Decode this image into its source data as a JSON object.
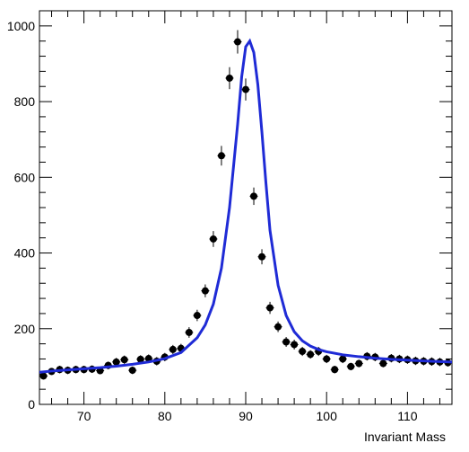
{
  "chart_data": {
    "type": "scatter",
    "title": "",
    "xlabel": "Invariant Mass",
    "ylabel": "",
    "xlim": [
      64.5,
      115.5
    ],
    "ylim": [
      0,
      1040
    ],
    "x_ticks": [
      70,
      80,
      90,
      100,
      110
    ],
    "y_ticks": [
      0,
      200,
      400,
      600,
      800,
      1000
    ],
    "grid": false,
    "legend": "none",
    "bin_half_width": 0.5,
    "colors": {
      "points": "#000000",
      "fit": "#1f2bd6",
      "axis": "#000000"
    },
    "series": [
      {
        "type": "scatter",
        "x": [
          65,
          66,
          67,
          68,
          69,
          70,
          71,
          72,
          73,
          74,
          75,
          76,
          77,
          78,
          79,
          80,
          81,
          82,
          83,
          84,
          85,
          86,
          87,
          88,
          89,
          90,
          91,
          92,
          93,
          94,
          95,
          96,
          97,
          98,
          99,
          100,
          101,
          102,
          103,
          104,
          105,
          106,
          107,
          108,
          109,
          110,
          111,
          112,
          113,
          114,
          115
        ],
        "y": [
          75,
          87,
          92,
          90,
          92,
          92,
          93,
          89,
          103,
          112,
          118,
          90,
          119,
          121,
          114,
          125,
          145,
          148,
          190,
          235,
          300,
          437,
          657,
          862,
          958,
          832,
          550,
          390,
          255,
          205,
          165,
          158,
          140,
          132,
          140,
          120,
          92,
          120,
          100,
          108,
          127,
          125,
          108,
          122,
          120,
          118,
          115,
          114,
          113,
          112,
          110
        ],
        "error": [
          9,
          9,
          10,
          10,
          10,
          10,
          10,
          9,
          10,
          11,
          11,
          10,
          11,
          11,
          11,
          11,
          12,
          12,
          14,
          15,
          17,
          21,
          26,
          29,
          31,
          29,
          23,
          20,
          16,
          14,
          13,
          13,
          12,
          11,
          12,
          11,
          10,
          11,
          10,
          10,
          11,
          11,
          10,
          11,
          11,
          11,
          11,
          11,
          11,
          11,
          10
        ]
      },
      {
        "type": "line",
        "x": [
          64.5,
          66,
          68,
          70,
          72,
          74,
          76,
          78,
          80,
          82,
          84,
          85,
          86,
          87,
          88,
          89,
          89.5,
          90,
          90.5,
          91,
          91.5,
          92,
          92.5,
          93,
          94,
          95,
          96,
          97,
          98,
          99,
          100,
          102,
          104,
          106,
          108,
          110,
          112,
          114,
          115.5
        ],
        "y": [
          85,
          88,
          91,
          94,
          97,
          101,
          106,
          112,
          121,
          137,
          176,
          210,
          265,
          360,
          520,
          740,
          865,
          945,
          960,
          930,
          845,
          720,
          585,
          460,
          315,
          235,
          192,
          168,
          154,
          145,
          139,
          131,
          126,
          122,
          119,
          117,
          115,
          113,
          112
        ]
      }
    ]
  }
}
